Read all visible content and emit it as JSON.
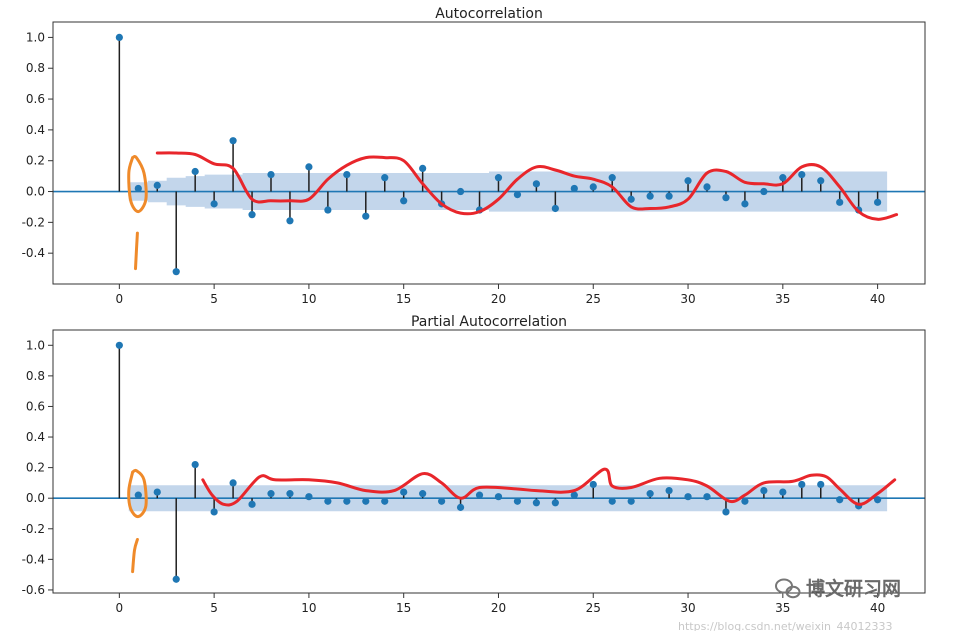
{
  "colors": {
    "stem": "#1f1f1f",
    "marker": "#1f77b4",
    "baseline": "#1f77b4",
    "confint": "#b9cfe7",
    "annotation_red": "#e8262b",
    "annotation_orange": "#ef8a2a"
  },
  "watermark": {
    "text": "博文研习网",
    "icon": "wechat-icon"
  },
  "url_fragment": "https://blog.csdn.net/weixin_44012333",
  "chart_data": [
    {
      "type": "stem",
      "title": "Autocorrelation",
      "xlabel": "",
      "ylabel": "",
      "xlim": [
        -3.5,
        42.5
      ],
      "ylim": [
        -0.6,
        1.1
      ],
      "xticks": [
        0,
        5,
        10,
        15,
        20,
        25,
        30,
        35,
        40
      ],
      "yticks": [
        -0.4,
        -0.2,
        0.0,
        0.2,
        0.4,
        0.6,
        0.8,
        1.0
      ],
      "ytick_labels": [
        "-0.4",
        "-0.2",
        "0.0",
        "0.2",
        "0.4",
        "0.6",
        "0.8",
        "1.0"
      ],
      "lags": [
        0,
        1,
        2,
        3,
        4,
        5,
        6,
        7,
        8,
        9,
        10,
        11,
        12,
        13,
        14,
        15,
        16,
        17,
        18,
        19,
        20,
        21,
        22,
        23,
        24,
        25,
        26,
        27,
        28,
        29,
        30,
        31,
        32,
        33,
        34,
        35,
        36,
        37,
        38,
        39,
        40
      ],
      "values": [
        1.0,
        0.02,
        0.04,
        -0.52,
        0.13,
        -0.08,
        0.33,
        -0.15,
        0.11,
        -0.19,
        0.16,
        -0.12,
        0.11,
        -0.16,
        0.09,
        -0.06,
        0.15,
        -0.08,
        0.0,
        -0.12,
        0.09,
        -0.02,
        0.05,
        -0.11,
        0.02,
        0.03,
        0.09,
        -0.05,
        -0.03,
        -0.03,
        0.07,
        0.03,
        -0.04,
        -0.08,
        0.0,
        0.09,
        0.11,
        0.07,
        -0.07,
        -0.12,
        -0.07
      ],
      "confint_upper": [
        0.0,
        0.06,
        0.07,
        0.09,
        0.1,
        0.11,
        0.11,
        0.12,
        0.12,
        0.12,
        0.12,
        0.12,
        0.12,
        0.12,
        0.12,
        0.12,
        0.12,
        0.12,
        0.12,
        0.12,
        0.13,
        0.13,
        0.13,
        0.13,
        0.13,
        0.13,
        0.13,
        0.13,
        0.13,
        0.13,
        0.13,
        0.13,
        0.13,
        0.13,
        0.13,
        0.13,
        0.13,
        0.13,
        0.13,
        0.13,
        0.13
      ],
      "annotation_red": [
        [
          2,
          0.25
        ],
        [
          3,
          0.25
        ],
        [
          4,
          0.24
        ],
        [
          5,
          0.18
        ],
        [
          6,
          0.15
        ],
        [
          7,
          -0.05
        ],
        [
          8,
          -0.06
        ],
        [
          9,
          -0.06
        ],
        [
          10,
          -0.05
        ],
        [
          11,
          0.08
        ],
        [
          12,
          0.17
        ],
        [
          13,
          0.22
        ],
        [
          14,
          0.22
        ],
        [
          15,
          0.2
        ],
        [
          16,
          0.05
        ],
        [
          17,
          -0.08
        ],
        [
          18,
          -0.14
        ],
        [
          19,
          -0.13
        ],
        [
          20,
          -0.05
        ],
        [
          21,
          0.08
        ],
        [
          22,
          0.16
        ],
        [
          23,
          0.14
        ],
        [
          24,
          0.1
        ],
        [
          25,
          0.08
        ],
        [
          26,
          0.03
        ],
        [
          27,
          -0.1
        ],
        [
          28,
          -0.11
        ],
        [
          29,
          -0.1
        ],
        [
          30,
          -0.05
        ],
        [
          31,
          0.12
        ],
        [
          32,
          0.13
        ],
        [
          33,
          0.06
        ],
        [
          34,
          0.05
        ],
        [
          35,
          0.05
        ],
        [
          36,
          0.16
        ],
        [
          37,
          0.16
        ],
        [
          38,
          0.03
        ],
        [
          39,
          -0.13
        ],
        [
          40,
          -0.18
        ],
        [
          41,
          -0.15
        ]
      ],
      "annotation_orange": [
        [
          [
            0.7,
            0.22
          ],
          [
            0.5,
            0.12
          ],
          [
            0.6,
            -0.06
          ],
          [
            1.0,
            -0.13
          ],
          [
            1.4,
            -0.05
          ],
          [
            1.3,
            0.12
          ],
          [
            0.9,
            0.22
          ],
          [
            0.7,
            0.22
          ]
        ],
        [
          [
            0.95,
            -0.27
          ],
          [
            0.85,
            -0.5
          ]
        ]
      ]
    },
    {
      "type": "stem",
      "title": "Partial Autocorrelation",
      "xlabel": "",
      "ylabel": "",
      "xlim": [
        -3.5,
        42.5
      ],
      "ylim": [
        -0.62,
        1.1
      ],
      "xticks": [
        0,
        5,
        10,
        15,
        20,
        25,
        30,
        35,
        40
      ],
      "yticks": [
        -0.6,
        -0.4,
        -0.2,
        0.0,
        0.2,
        0.4,
        0.6,
        0.8,
        1.0
      ],
      "ytick_labels": [
        "-0.6",
        "-0.4",
        "-0.2",
        "0.0",
        "0.2",
        "0.4",
        "0.6",
        "0.8",
        "1.0"
      ],
      "lags": [
        0,
        1,
        2,
        3,
        4,
        5,
        6,
        7,
        8,
        9,
        10,
        11,
        12,
        13,
        14,
        15,
        16,
        17,
        18,
        19,
        20,
        21,
        22,
        23,
        24,
        25,
        26,
        27,
        28,
        29,
        30,
        31,
        32,
        33,
        34,
        35,
        36,
        37,
        38,
        39,
        40
      ],
      "values": [
        1.0,
        0.02,
        0.04,
        -0.53,
        0.22,
        -0.09,
        0.1,
        -0.04,
        0.03,
        0.03,
        0.01,
        -0.02,
        -0.02,
        -0.02,
        -0.02,
        0.04,
        0.03,
        -0.02,
        -0.06,
        0.02,
        0.01,
        -0.02,
        -0.03,
        -0.03,
        0.02,
        0.09,
        -0.02,
        -0.02,
        0.03,
        0.05,
        0.01,
        0.01,
        -0.09,
        -0.02,
        0.05,
        0.04,
        0.09,
        0.09,
        -0.01,
        -0.05,
        -0.01
      ],
      "confint_upper": [
        0.0,
        0.085,
        0.085,
        0.085,
        0.085,
        0.085,
        0.085,
        0.085,
        0.085,
        0.085,
        0.085,
        0.085,
        0.085,
        0.085,
        0.085,
        0.085,
        0.085,
        0.085,
        0.085,
        0.085,
        0.085,
        0.085,
        0.085,
        0.085,
        0.085,
        0.085,
        0.085,
        0.085,
        0.085,
        0.085,
        0.085,
        0.085,
        0.085,
        0.085,
        0.085,
        0.085,
        0.085,
        0.085,
        0.085,
        0.085,
        0.085
      ],
      "annotation_red": [
        [
          4.4,
          0.12
        ],
        [
          4.9,
          0.02
        ],
        [
          5.5,
          -0.04
        ],
        [
          6.2,
          -0.02
        ],
        [
          7.4,
          0.14
        ],
        [
          8.2,
          0.12
        ],
        [
          10,
          0.12
        ],
        [
          11.5,
          0.1
        ],
        [
          13,
          0.05
        ],
        [
          14.5,
          0.05
        ],
        [
          16,
          0.16
        ],
        [
          17,
          0.1
        ],
        [
          18,
          0.0
        ],
        [
          19,
          0.07
        ],
        [
          21,
          0.06
        ],
        [
          22,
          0.05
        ],
        [
          24,
          0.05
        ],
        [
          25.6,
          0.19
        ],
        [
          26,
          0.08
        ],
        [
          27,
          0.07
        ],
        [
          28.5,
          0.13
        ],
        [
          30,
          0.12
        ],
        [
          31,
          0.08
        ],
        [
          32.2,
          -0.02
        ],
        [
          33,
          0.02
        ],
        [
          34,
          0.1
        ],
        [
          35.5,
          0.11
        ],
        [
          36.5,
          0.15
        ],
        [
          37.3,
          0.14
        ],
        [
          38,
          0.06
        ],
        [
          39,
          -0.04
        ],
        [
          40,
          0.03
        ],
        [
          40.9,
          0.12
        ]
      ],
      "annotation_orange": [
        [
          [
            0.7,
            0.17
          ],
          [
            0.5,
            0.05
          ],
          [
            0.6,
            -0.07
          ],
          [
            1.0,
            -0.12
          ],
          [
            1.4,
            -0.05
          ],
          [
            1.3,
            0.12
          ],
          [
            0.9,
            0.18
          ],
          [
            0.7,
            0.17
          ]
        ],
        [
          [
            0.95,
            -0.27
          ],
          [
            0.8,
            -0.34
          ],
          [
            0.7,
            -0.48
          ]
        ]
      ]
    }
  ]
}
